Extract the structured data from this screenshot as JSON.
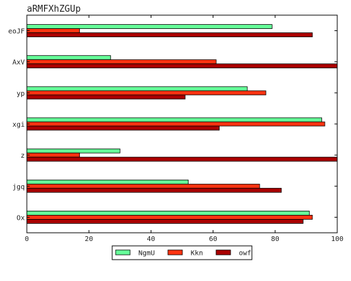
{
  "chart_data": {
    "type": "bar",
    "orientation": "horizontal",
    "title": "aRMFXhZGUp",
    "xlabel": "",
    "ylabel": "",
    "categories": [
      "eoJF",
      "AxV",
      "yp",
      "xgi",
      "z",
      "jgq",
      "Ox"
    ],
    "xlim": [
      0,
      100
    ],
    "xticks": [
      0,
      20,
      40,
      60,
      80,
      100
    ],
    "grid": false,
    "legend_position": "bottom-center",
    "series": [
      {
        "name": "NgmU",
        "color": "#66ff99",
        "values": [
          79,
          27,
          71,
          95,
          30,
          52,
          91
        ]
      },
      {
        "name": "Kkn",
        "color": "#ff3311",
        "values": [
          17,
          61,
          77,
          96,
          17,
          75,
          92
        ]
      },
      {
        "name": "owf",
        "color": "#aa0000",
        "values": [
          92,
          100,
          51,
          62,
          100,
          82,
          89
        ]
      }
    ]
  }
}
